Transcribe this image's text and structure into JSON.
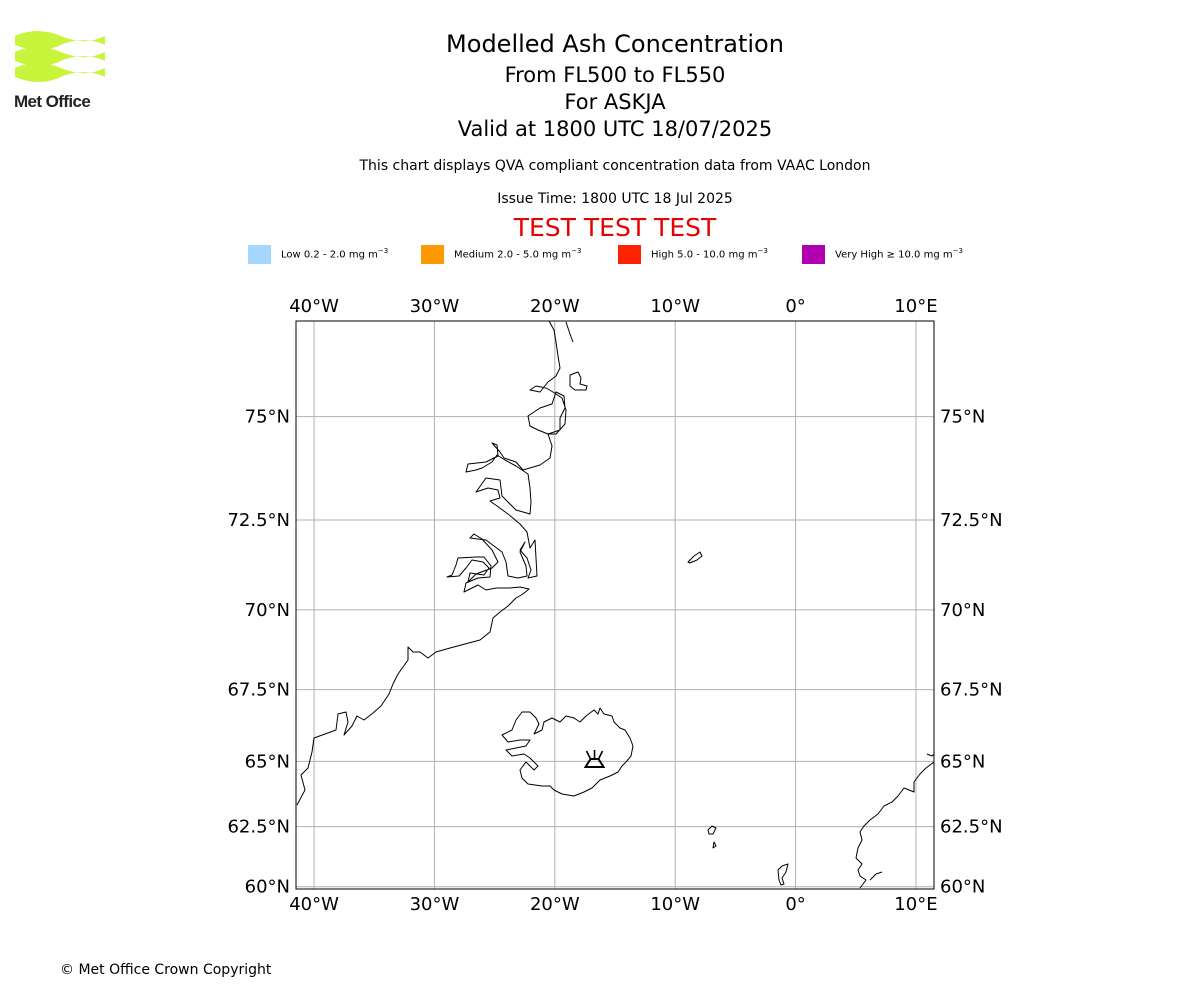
{
  "header": {
    "brand": "Met Office",
    "title": "Modelled Ash Concentration",
    "flight_levels": "From FL500 to FL550",
    "volcano": "For ASKJA",
    "valid_time": "Valid at 1800 UTC 18/07/2025",
    "description": "This chart displays QVA compliant concentration data from VAAC London",
    "issue_time": "Issue Time: 1800 UTC 18 Jul 2025",
    "test_notice": "TEST TEST TEST"
  },
  "legend": [
    {
      "label": "Low 0.2 - 2.0 mg m",
      "unit_exp": "−3",
      "color": "#a6d8ff"
    },
    {
      "label": "Medium 2.0 - 5.0 mg m",
      "unit_exp": "−3",
      "color": "#ff9900"
    },
    {
      "label": "High 5.0 - 10.0 mg m",
      "unit_exp": "−3",
      "color": "#ff2200"
    },
    {
      "label": "Very High ≥ 10.0 mg m",
      "unit_exp": "−3",
      "color": "#b000b0"
    }
  ],
  "map": {
    "lon_range": [
      -41.5,
      11.5
    ],
    "lat_range": [
      59.9,
      77.0
    ],
    "lon_ticks": [
      {
        "value": -40,
        "label": "40°W"
      },
      {
        "value": -30,
        "label": "30°W"
      },
      {
        "value": -20,
        "label": "20°W"
      },
      {
        "value": -10,
        "label": "10°W"
      },
      {
        "value": 0,
        "label": "0°"
      },
      {
        "value": 10,
        "label": "10°E"
      }
    ],
    "lat_ticks": [
      {
        "value": 75,
        "label": "75°N"
      },
      {
        "value": 72.5,
        "label": "72.5°N"
      },
      {
        "value": 70,
        "label": "70°N"
      },
      {
        "value": 67.5,
        "label": "67.5°N"
      },
      {
        "value": 65,
        "label": "65°N"
      },
      {
        "value": 62.5,
        "label": "62.5°N"
      },
      {
        "value": 60,
        "label": "60°N"
      }
    ],
    "gridlines": true,
    "volcano_symbol": {
      "name": "ASKJA",
      "lon": -16.7,
      "lat": 65.05
    },
    "colors": {
      "grid": "#b0b0b0",
      "coast": "#000000",
      "frame": "#000000"
    }
  },
  "footer": {
    "copyright": "© Met Office Crown Copyright"
  }
}
